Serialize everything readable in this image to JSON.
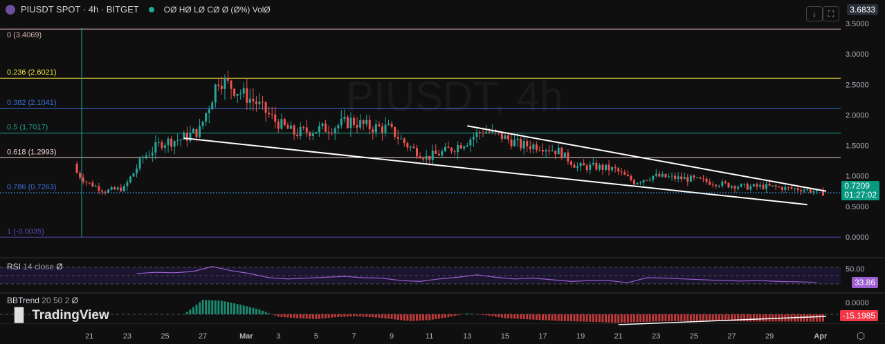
{
  "header": {
    "symbol": "PIUSDT SPOT · 4h · BITGET",
    "ohlc": "OØ HØ LØ CØ Ø (Ø%) VolØ"
  },
  "watermark": "PIUSDT, 4h",
  "logo": "TradingView",
  "price_scale_top": "3.6833",
  "current_price": "0.7209",
  "countdown": "01:27:02",
  "rsi": {
    "label": "RSI",
    "params": "14 close",
    "value_hidden": "Ø",
    "last": "33.86",
    "level": "50.00"
  },
  "bbtrend": {
    "label": "BBTrend",
    "params": "20 50 2",
    "value_hidden": "Ø",
    "last": "-15.1985",
    "level": "0.0000"
  },
  "colors": {
    "up": "#26a69a",
    "down": "#ef5350",
    "rsi": "#9c5fd0",
    "bg": "#0f0f0f"
  },
  "icons": [
    "arrow-down-icon",
    "fullscreen-icon",
    "settings-icon"
  ],
  "chart_data": {
    "type": "candlestick",
    "timeframe": "4h",
    "x_ticks": [
      "21",
      "23",
      "25",
      "27",
      "Mar",
      "3",
      "5",
      "7",
      "9",
      "11",
      "13",
      "15",
      "17",
      "19",
      "21",
      "23",
      "25",
      "27",
      "29",
      "Apr"
    ],
    "y_ticks": [
      "0.0000",
      "0.5000",
      "1.0000",
      "1.5000",
      "2.0000",
      "2.5000",
      "3.0000",
      "3.5000"
    ],
    "ylim": [
      -0.3,
      3.68
    ],
    "fib_levels": [
      {
        "label": "0 (3.4069)",
        "ratio": 0,
        "price": 3.4069,
        "color": "#d8b4b4"
      },
      {
        "label": "0.236 (2.6021)",
        "ratio": 0.236,
        "price": 2.6021,
        "color": "#f0e040"
      },
      {
        "label": "0.382 (2.1041)",
        "ratio": 0.382,
        "price": 2.1041,
        "color": "#3b6fd8"
      },
      {
        "label": "0.5 (1.7017)",
        "ratio": 0.5,
        "price": 1.7017,
        "color": "#1e9e8a"
      },
      {
        "label": "0.618 (1.2993)",
        "ratio": 0.618,
        "price": 1.2993,
        "color": "#f0d0d0"
      },
      {
        "label": "0.786 (0.7263)",
        "ratio": 0.786,
        "price": 0.7263,
        "color": "#3b6fd8"
      },
      {
        "label": "1 (-0.0035)",
        "ratio": 1,
        "price": -0.0035,
        "color": "#5a4fc0"
      }
    ],
    "daily_close_approx": {
      "start": "Feb 20",
      "values": [
        0.9,
        0.75,
        0.8,
        1.3,
        1.55,
        1.6,
        1.75,
        2.6,
        2.4,
        2.2,
        1.9,
        1.7,
        1.75,
        1.8,
        1.9,
        1.8,
        1.78,
        1.5,
        1.3,
        1.4,
        1.55,
        1.75,
        1.65,
        1.5,
        1.5,
        1.4,
        1.15,
        1.15,
        1.1,
        0.9,
        1.0,
        0.97,
        0.95,
        0.9,
        0.85,
        0.82,
        0.83,
        0.8,
        0.78,
        0.72
      ]
    },
    "rsi_daily_approx": [
      50,
      40,
      45,
      55,
      58,
      57,
      60,
      72,
      62,
      55,
      45,
      42,
      44,
      46,
      48,
      45,
      44,
      38,
      36,
      42,
      46,
      52,
      46,
      42,
      44,
      40,
      36,
      38,
      38,
      33,
      45,
      44,
      42,
      40,
      38,
      37,
      38,
      36,
      35,
      33.86
    ],
    "bbtrend_daily_approx": [
      0,
      0,
      0,
      0,
      0,
      0,
      0,
      30,
      28,
      20,
      10,
      -5,
      -8,
      -10,
      -6,
      -4,
      -6,
      -10,
      -14,
      -12,
      -6,
      2,
      -2,
      -8,
      -10,
      -12,
      -14,
      -15,
      -16,
      -18,
      -16,
      -15,
      -14,
      -14,
      -13,
      -14,
      -15,
      -15,
      -15,
      -15.1985
    ],
    "trendlines": [
      {
        "from": [
          "Mar 13",
          1.82
        ],
        "to": [
          "Apr 1",
          0.75
        ]
      },
      {
        "from": [
          "Feb 26",
          1.62
        ],
        "to": [
          "Mar 31",
          0.53
        ]
      }
    ]
  }
}
